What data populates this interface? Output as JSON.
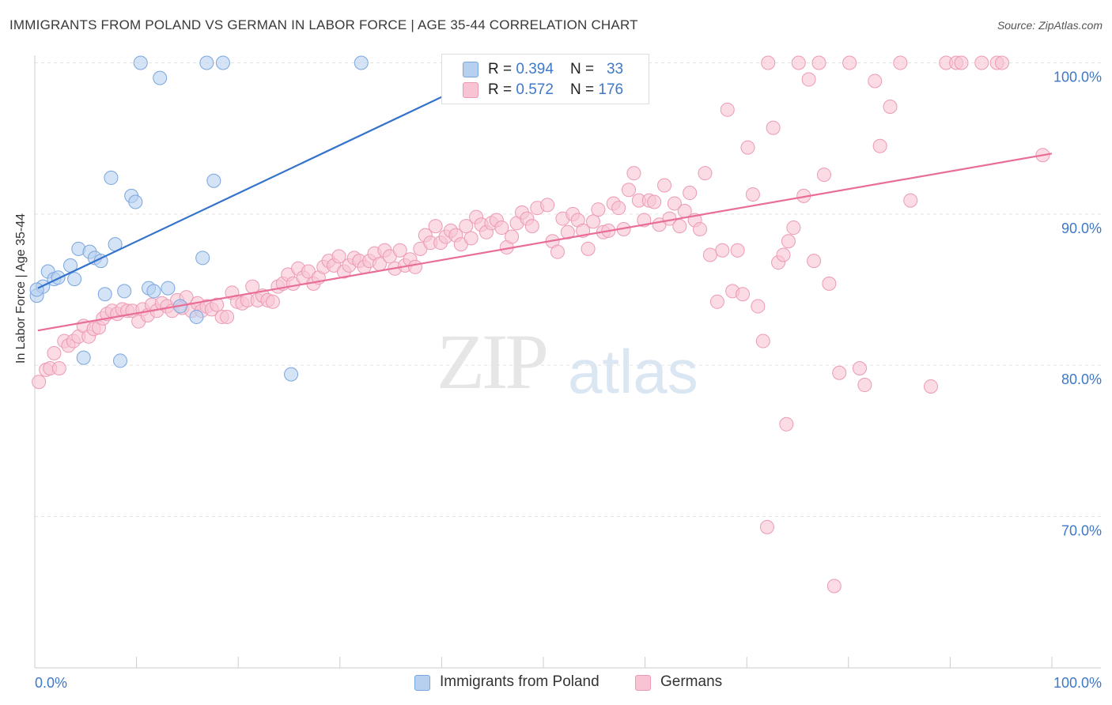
{
  "header": {
    "title": "IMMIGRANTS FROM POLAND VS GERMAN IN LABOR FORCE | AGE 35-44 CORRELATION CHART",
    "source": "Source: ZipAtlas.com"
  },
  "watermark": {
    "zip": "ZIP",
    "atlas": "atlas"
  },
  "legend_top": {
    "rows": [
      {
        "r_label": "R = ",
        "r_value": "0.394",
        "n_label": "N = ",
        "n_value": "33"
      },
      {
        "r_label": "R = ",
        "r_value": "0.572",
        "n_label": "N = ",
        "n_value": "176"
      }
    ]
  },
  "legend_bottom": {
    "items": [
      "Immigrants from Poland",
      "Germans"
    ]
  },
  "colors": {
    "poland_fill": "#b8d0f0",
    "poland_stroke": "#7aa6de",
    "poland_line": "#3473cc",
    "germans_fill": "#f8c4d4",
    "germans_stroke": "#ec9ab4",
    "germans_line": "#e86e98",
    "grid": "#e4e4e4",
    "tick_label": "#3f78c8"
  },
  "chart_data": {
    "type": "scatter",
    "title": "IMMIGRANTS FROM POLAND VS GERMAN IN LABOR FORCE | AGE 35-44 CORRELATION CHART",
    "xlabel": "",
    "ylabel": "In Labor Force | Age 35-44",
    "xlim": [
      0,
      100
    ],
    "ylim": [
      60,
      102
    ],
    "x_tick_labels": [
      "0.0%",
      "100.0%"
    ],
    "y_ticks": [
      70,
      80,
      90,
      100
    ],
    "y_tick_labels": [
      "70.0%",
      "80.0%",
      "90.0%",
      "100.0%"
    ],
    "grid": true,
    "legend_position": "bottom-center",
    "series": [
      {
        "name": "Immigrants from Poland",
        "R": 0.394,
        "N": 33,
        "trend": {
          "x": [
            0.3,
            40.5
          ],
          "y": [
            85.1,
            97.9
          ]
        },
        "points": [
          [
            0.2,
            84.6
          ],
          [
            0.8,
            85.2
          ],
          [
            1.3,
            86.2
          ],
          [
            1.9,
            85.7
          ],
          [
            2.3,
            85.8
          ],
          [
            3.5,
            86.6
          ],
          [
            3.9,
            85.7
          ],
          [
            4.3,
            87.7
          ],
          [
            4.8,
            80.5
          ],
          [
            5.4,
            87.5
          ],
          [
            5.9,
            87.1
          ],
          [
            6.5,
            86.9
          ],
          [
            6.9,
            84.7
          ],
          [
            7.5,
            92.4
          ],
          [
            7.9,
            88.0
          ],
          [
            8.4,
            80.3
          ],
          [
            8.8,
            84.9
          ],
          [
            9.5,
            91.2
          ],
          [
            9.9,
            90.8
          ],
          [
            10.4,
            100.0
          ],
          [
            11.2,
            85.1
          ],
          [
            11.7,
            84.9
          ],
          [
            12.3,
            99.0
          ],
          [
            13.1,
            85.1
          ],
          [
            14.3,
            83.9
          ],
          [
            15.9,
            83.2
          ],
          [
            16.5,
            87.1
          ],
          [
            16.9,
            100.0
          ],
          [
            17.6,
            92.2
          ],
          [
            18.5,
            100.0
          ],
          [
            25.2,
            79.4
          ],
          [
            32.1,
            100.0
          ],
          [
            0.2,
            85.0
          ]
        ]
      },
      {
        "name": "Germans",
        "R": 0.572,
        "N": 176,
        "trend": {
          "x": [
            0.3,
            100
          ],
          "y": [
            82.3,
            94.0
          ]
        },
        "points": [
          [
            0.4,
            78.9
          ],
          [
            1.1,
            79.7
          ],
          [
            1.5,
            79.8
          ],
          [
            1.9,
            80.8
          ],
          [
            2.4,
            79.8
          ],
          [
            2.9,
            81.6
          ],
          [
            3.3,
            81.3
          ],
          [
            3.8,
            81.6
          ],
          [
            4.3,
            81.9
          ],
          [
            4.8,
            82.6
          ],
          [
            5.3,
            81.9
          ],
          [
            5.8,
            82.4
          ],
          [
            6.3,
            82.5
          ],
          [
            6.7,
            83.1
          ],
          [
            7.1,
            83.4
          ],
          [
            7.6,
            83.6
          ],
          [
            8.1,
            83.4
          ],
          [
            8.6,
            83.7
          ],
          [
            9.1,
            83.6
          ],
          [
            9.6,
            83.6
          ],
          [
            10.2,
            82.9
          ],
          [
            10.6,
            83.7
          ],
          [
            11.1,
            83.3
          ],
          [
            11.5,
            84.0
          ],
          [
            12.0,
            83.6
          ],
          [
            12.5,
            84.1
          ],
          [
            13.0,
            83.9
          ],
          [
            13.5,
            83.6
          ],
          [
            14.0,
            84.3
          ],
          [
            14.5,
            83.8
          ],
          [
            14.9,
            84.5
          ],
          [
            15.4,
            83.6
          ],
          [
            16.0,
            84.1
          ],
          [
            16.4,
            83.6
          ],
          [
            16.9,
            83.9
          ],
          [
            17.4,
            83.7
          ],
          [
            17.9,
            84.0
          ],
          [
            18.4,
            83.2
          ],
          [
            18.9,
            83.2
          ],
          [
            19.4,
            84.8
          ],
          [
            19.9,
            84.2
          ],
          [
            20.4,
            84.1
          ],
          [
            20.9,
            84.3
          ],
          [
            21.4,
            85.2
          ],
          [
            21.9,
            84.3
          ],
          [
            22.4,
            84.6
          ],
          [
            22.9,
            84.3
          ],
          [
            23.4,
            84.2
          ],
          [
            23.9,
            85.2
          ],
          [
            24.4,
            85.4
          ],
          [
            24.9,
            86.0
          ],
          [
            25.4,
            85.4
          ],
          [
            25.9,
            86.4
          ],
          [
            26.4,
            85.8
          ],
          [
            26.9,
            86.2
          ],
          [
            27.4,
            85.4
          ],
          [
            27.9,
            85.8
          ],
          [
            28.4,
            86.5
          ],
          [
            28.9,
            86.9
          ],
          [
            29.4,
            86.6
          ],
          [
            29.9,
            87.2
          ],
          [
            30.4,
            86.2
          ],
          [
            30.9,
            86.6
          ],
          [
            31.4,
            87.1
          ],
          [
            31.9,
            86.9
          ],
          [
            32.4,
            86.5
          ],
          [
            32.9,
            86.9
          ],
          [
            33.4,
            87.4
          ],
          [
            33.9,
            86.7
          ],
          [
            34.4,
            87.6
          ],
          [
            34.9,
            87.2
          ],
          [
            35.4,
            86.4
          ],
          [
            35.9,
            87.6
          ],
          [
            36.4,
            86.6
          ],
          [
            36.9,
            87.0
          ],
          [
            37.4,
            86.5
          ],
          [
            37.9,
            87.7
          ],
          [
            38.4,
            88.6
          ],
          [
            38.9,
            88.1
          ],
          [
            39.4,
            89.2
          ],
          [
            39.9,
            88.1
          ],
          [
            40.4,
            88.5
          ],
          [
            40.9,
            88.9
          ],
          [
            41.4,
            88.6
          ],
          [
            41.9,
            88.0
          ],
          [
            42.4,
            89.2
          ],
          [
            42.9,
            88.4
          ],
          [
            43.4,
            89.8
          ],
          [
            43.9,
            89.3
          ],
          [
            44.4,
            88.8
          ],
          [
            44.9,
            89.4
          ],
          [
            45.4,
            89.6
          ],
          [
            45.9,
            89.1
          ],
          [
            46.4,
            87.8
          ],
          [
            46.9,
            88.5
          ],
          [
            47.4,
            89.4
          ],
          [
            47.9,
            90.1
          ],
          [
            48.4,
            89.7
          ],
          [
            48.9,
            89.2
          ],
          [
            49.4,
            90.4
          ],
          [
            50.4,
            90.6
          ],
          [
            50.9,
            88.2
          ],
          [
            51.4,
            87.5
          ],
          [
            51.9,
            89.7
          ],
          [
            52.4,
            88.8
          ],
          [
            52.9,
            90.0
          ],
          [
            53.4,
            89.6
          ],
          [
            53.9,
            88.9
          ],
          [
            54.4,
            87.7
          ],
          [
            54.9,
            89.5
          ],
          [
            55.4,
            90.3
          ],
          [
            55.9,
            88.8
          ],
          [
            56.4,
            88.9
          ],
          [
            56.9,
            90.7
          ],
          [
            57.4,
            90.4
          ],
          [
            57.9,
            89.0
          ],
          [
            58.4,
            91.6
          ],
          [
            58.9,
            92.7
          ],
          [
            59.4,
            90.9
          ],
          [
            59.9,
            89.6
          ],
          [
            60.4,
            90.9
          ],
          [
            60.9,
            90.8
          ],
          [
            61.4,
            89.3
          ],
          [
            61.9,
            91.9
          ],
          [
            62.4,
            89.7
          ],
          [
            62.9,
            90.7
          ],
          [
            63.4,
            89.2
          ],
          [
            63.9,
            90.2
          ],
          [
            64.4,
            91.4
          ],
          [
            64.9,
            89.6
          ],
          [
            65.4,
            89.0
          ],
          [
            65.9,
            92.7
          ],
          [
            66.4,
            87.3
          ],
          [
            67.1,
            84.2
          ],
          [
            67.6,
            87.6
          ],
          [
            68.1,
            96.9
          ],
          [
            68.6,
            84.9
          ],
          [
            69.1,
            87.6
          ],
          [
            69.6,
            84.7
          ],
          [
            70.1,
            94.4
          ],
          [
            70.6,
            91.3
          ],
          [
            71.1,
            83.9
          ],
          [
            71.6,
            81.6
          ],
          [
            72.1,
            100.0
          ],
          [
            72.6,
            95.7
          ],
          [
            73.1,
            86.8
          ],
          [
            73.6,
            87.3
          ],
          [
            74.1,
            88.2
          ],
          [
            74.6,
            89.1
          ],
          [
            75.1,
            100.0
          ],
          [
            75.6,
            91.2
          ],
          [
            76.1,
            98.9
          ],
          [
            76.6,
            86.9
          ],
          [
            77.1,
            100.0
          ],
          [
            77.6,
            92.6
          ],
          [
            78.1,
            85.4
          ],
          [
            78.6,
            65.4
          ],
          [
            79.1,
            79.5
          ],
          [
            80.1,
            100.0
          ],
          [
            81.1,
            79.8
          ],
          [
            81.6,
            78.7
          ],
          [
            82.6,
            98.8
          ],
          [
            83.1,
            94.5
          ],
          [
            84.1,
            97.1
          ],
          [
            85.1,
            100.0
          ],
          [
            86.1,
            90.9
          ],
          [
            88.1,
            78.6
          ],
          [
            89.6,
            100.0
          ],
          [
            90.6,
            100.0
          ],
          [
            93.1,
            100.0
          ],
          [
            94.6,
            100.0
          ],
          [
            95.1,
            100.0
          ],
          [
            99.1,
            93.9
          ],
          [
            91.1,
            100.0
          ],
          [
            73.9,
            76.1
          ],
          [
            72.0,
            69.3
          ]
        ]
      }
    ]
  }
}
